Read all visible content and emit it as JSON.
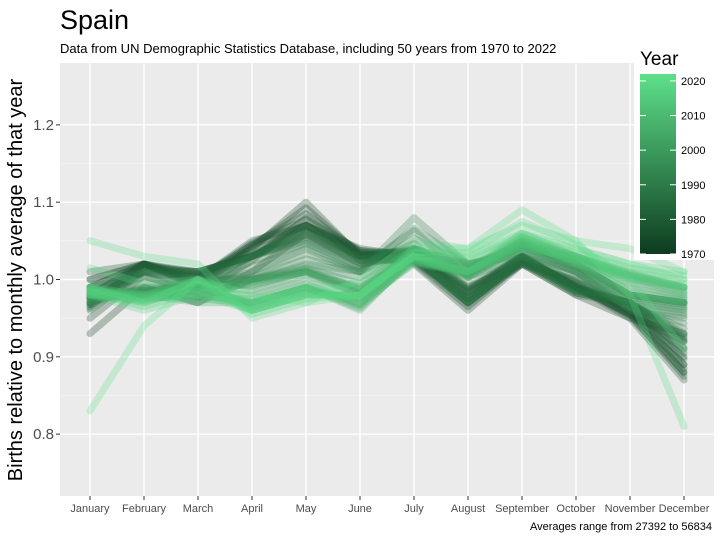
{
  "chart_data": {
    "type": "line",
    "title": "Spain",
    "subtitle": "Data from UN Demographic Statistics Database, including 50 years from 1970 to 2022",
    "caption": "Averages range from 27392 to 56834",
    "xlabel": "",
    "ylabel": "Births relative to monthly average of that year",
    "categories": [
      "January",
      "February",
      "March",
      "April",
      "May",
      "June",
      "July",
      "August",
      "September",
      "October",
      "November",
      "December"
    ],
    "ylim": [
      0.72,
      1.28
    ],
    "yticks": [
      0.8,
      0.9,
      1.0,
      1.1,
      1.2
    ],
    "ytick_labels": [
      "0.8",
      "0.9",
      "1.0",
      "1.1",
      "1.2"
    ],
    "grid": true,
    "legend": {
      "title": "Year",
      "position": "top-right",
      "range": [
        1970,
        2022
      ],
      "ticks": [
        1970,
        1980,
        1990,
        2000,
        2010,
        2020
      ],
      "tick_labels": [
        "1970",
        "1980",
        "1990",
        "2000",
        "2010",
        "2020"
      ],
      "color_low": "#0d3b1e",
      "color_high": "#5ee08a"
    },
    "colors": {
      "panel": "#ebebeb",
      "grid_major": "#ffffff",
      "grid_minor": "#f4f4f4",
      "line_old": "#0d3b1e",
      "line_new": "#5ee08a"
    },
    "anchor_series": [
      {
        "year": 1970,
        "values": [
          0.93,
          0.99,
          0.97,
          1.01,
          1.06,
          1.02,
          1.03,
          0.99,
          1.02,
          0.98,
          0.95,
          0.93
        ]
      },
      {
        "year": 1972,
        "values": [
          0.97,
          1.02,
          0.99,
          1.04,
          1.1,
          1.03,
          1.02,
          0.96,
          1.02,
          1.0,
          0.96,
          0.91
        ]
      },
      {
        "year": 1976,
        "values": [
          1.01,
          1.02,
          1.0,
          1.05,
          1.07,
          1.04,
          1.03,
          0.98,
          1.03,
          0.99,
          0.95,
          0.87
        ]
      },
      {
        "year": 1980,
        "values": [
          0.97,
          1.02,
          1.01,
          1.03,
          1.07,
          1.03,
          1.04,
          0.99,
          1.03,
          0.99,
          0.97,
          0.89
        ]
      },
      {
        "year": 1984,
        "values": [
          0.96,
          1.01,
          1.01,
          1.03,
          1.06,
          1.03,
          1.03,
          0.97,
          1.02,
          0.98,
          0.97,
          0.92
        ]
      },
      {
        "year": 1988,
        "values": [
          0.99,
          1.01,
          0.99,
          1.03,
          1.05,
          1.02,
          1.03,
          0.97,
          1.03,
          0.99,
          0.97,
          0.93
        ]
      },
      {
        "year": 1991,
        "values": [
          0.97,
          0.99,
          0.99,
          1.01,
          1.04,
          1.01,
          1.08,
          1.02,
          1.03,
          1.01,
          0.96,
          0.95
        ]
      },
      {
        "year": 1994,
        "values": [
          0.98,
          0.98,
          1.0,
          1.0,
          1.02,
          1.01,
          1.04,
          1.02,
          1.04,
          1.01,
          0.97,
          0.96
        ]
      },
      {
        "year": 1998,
        "values": [
          0.97,
          0.99,
          0.97,
          1.0,
          1.01,
          0.98,
          1.04,
          1.01,
          1.05,
          1.02,
          0.98,
          0.97
        ]
      },
      {
        "year": 2002,
        "values": [
          0.99,
          0.98,
          1.0,
          0.99,
          1.01,
          0.99,
          1.03,
          1.0,
          1.04,
          1.02,
          0.98,
          0.97
        ]
      },
      {
        "year": 2006,
        "values": [
          0.98,
          0.98,
          0.97,
          0.97,
          0.99,
          0.96,
          1.03,
          1.01,
          1.06,
          1.03,
          1.0,
          0.98
        ]
      },
      {
        "year": 2010,
        "values": [
          0.98,
          0.97,
          0.99,
          0.97,
          0.99,
          0.97,
          1.02,
          1.01,
          1.04,
          1.03,
          1.01,
          0.99
        ]
      },
      {
        "year": 2014,
        "values": [
          0.99,
          0.98,
          1.0,
          0.96,
          0.98,
          0.98,
          1.03,
          1.01,
          1.05,
          1.02,
          1.0,
          0.99
        ]
      },
      {
        "year": 2018,
        "values": [
          0.98,
          0.96,
          0.98,
          0.96,
          0.98,
          0.98,
          1.03,
          1.03,
          1.06,
          1.04,
          1.02,
          1.01
        ]
      },
      {
        "year": 2020,
        "values": [
          1.05,
          1.03,
          1.02,
          0.95,
          0.97,
          0.98,
          1.04,
          1.04,
          1.09,
          1.05,
          0.98,
          0.81
        ]
      },
      {
        "year": 2021,
        "values": [
          0.83,
          0.94,
          1.0,
          0.98,
          0.97,
          1.0,
          1.05,
          1.04,
          1.07,
          1.05,
          1.04,
          1.01
        ]
      },
      {
        "year": 2022,
        "values": [
          0.99,
          0.97,
          1.0,
          0.97,
          0.99,
          0.99,
          1.04,
          1.03,
          1.06,
          1.04,
          1.02,
          1.0
        ]
      }
    ]
  }
}
